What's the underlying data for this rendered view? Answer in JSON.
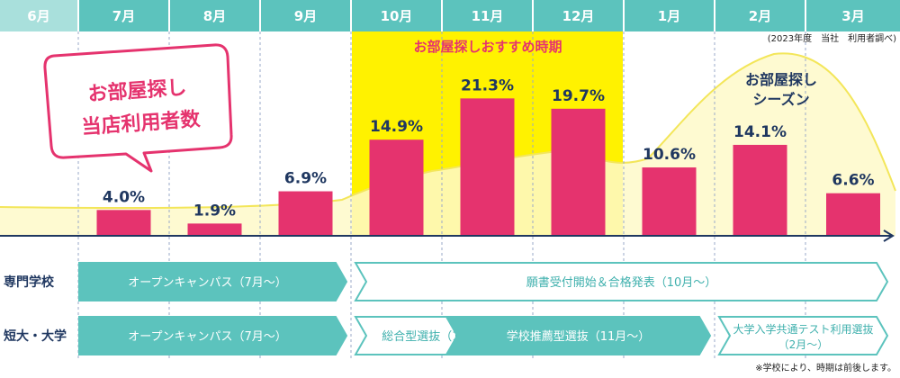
{
  "chart_data": {
    "type": "bar",
    "categories": [
      "6月",
      "7月",
      "8月",
      "9月",
      "10月",
      "11月",
      "12月",
      "1月",
      "2月",
      "3月"
    ],
    "values": [
      null,
      4.0,
      1.9,
      6.9,
      14.9,
      21.3,
      19.7,
      10.6,
      14.1,
      6.6
    ],
    "value_labels": [
      "",
      "4.0%",
      "1.9%",
      "6.9%",
      "14.9%",
      "21.3%",
      "19.7%",
      "10.6%",
      "14.1%",
      "6.6%"
    ],
    "ylim": [
      0,
      24
    ],
    "title": "",
    "xlabel": "",
    "ylabel": "",
    "source_note": "(2023年度　当社　利用者調べ)",
    "callout": [
      "お部屋探し",
      "当店利用者数"
    ],
    "highlight": {
      "label": "お部屋探しおすすめ時期",
      "months": [
        "10月",
        "11月",
        "12月"
      ]
    },
    "season": {
      "label": [
        "お部屋探し",
        "シーズン"
      ],
      "peak_month": "2月"
    },
    "colors": {
      "bar": "#e5336e",
      "header_active": "#5cc3bd",
      "header_first": "#a9e0dc",
      "highlight": "#fff200",
      "season_fill": "#fef9c9",
      "season_line": "#f3e65a",
      "text_dark": "#1f3760",
      "callout_border": "#e5336e",
      "timeline": "#5cc3bd"
    }
  },
  "timeline": {
    "rows": [
      {
        "label": "専門学校",
        "items": [
          {
            "text": "オープンキャンパス（7月～）",
            "style": "filled",
            "from": "7月",
            "to": "9月"
          },
          {
            "text": "願書受付開始＆合格発表（10月～）",
            "style": "outline",
            "from": "10月",
            "to": "3月"
          }
        ]
      },
      {
        "label": "短大・大学",
        "items": [
          {
            "text": "オープンキャンパス（7月～）",
            "style": "filled",
            "from": "7月",
            "to": "9月"
          },
          {
            "text": "総合型選抜（10月～）",
            "style": "outline",
            "from": "10月",
            "to": "11月"
          },
          {
            "text": "学校推薦型選抜（11月～）",
            "style": "filled",
            "from": "11月",
            "to": "1月"
          },
          {
            "text": [
              "大学入学共通テスト利用選抜",
              "（2月～）"
            ],
            "style": "outline",
            "from": "2月",
            "to": "3月"
          }
        ]
      }
    ],
    "footnote": "※学校により、時期は前後します。"
  }
}
